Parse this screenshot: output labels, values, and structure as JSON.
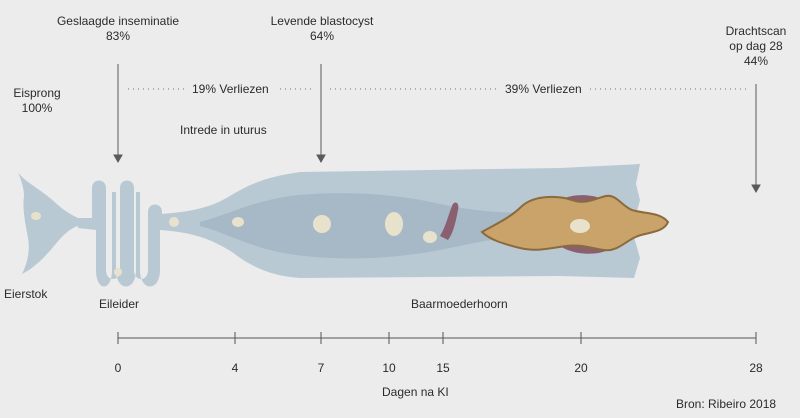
{
  "labels": {
    "ovulation": {
      "line1": "Eisprong",
      "line2": "100%"
    },
    "insemination": {
      "line1": "Geslaagde inseminatie",
      "line2": "83%"
    },
    "blastocyst": {
      "line1": "Levende blastocyst",
      "line2": "64%"
    },
    "scan": {
      "line1": "Drachtscan",
      "line2": "op dag 28",
      "line3": "44%"
    },
    "loss1": "19% Verliezen",
    "loss2": "39% Verliezen",
    "entry": "Intrede in uturus",
    "ovary": "Eierstok",
    "oviduct": "Eileider",
    "uterine_horn": "Baarmoederhoorn"
  },
  "axis": {
    "title": "Dagen na KI",
    "ticks": [
      "0",
      "4",
      "7",
      "10",
      "15",
      "20",
      "28"
    ]
  },
  "source": "Bron: Ribeiro 2018",
  "colors": {
    "background": "#ececec",
    "tissue": "#b9c9d3",
    "tissue_inner": "#a4b7c4",
    "egg": "#e8e2cc",
    "embryo": "#c9a36a",
    "embryo_edge": "#8b6a3c",
    "membrane": "#8a6070"
  }
}
